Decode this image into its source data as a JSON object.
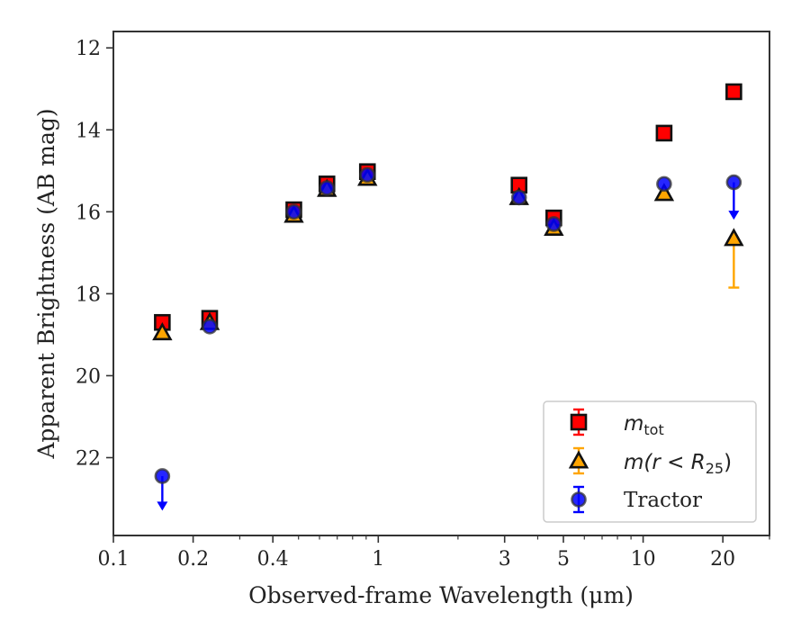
{
  "chart_data": {
    "type": "scatter",
    "xlabel": "Observed-frame Wavelength (μm)",
    "ylabel": "Apparent Brightness (AB mag)",
    "x_scale": "log",
    "y_inverted": true,
    "xlim": [
      0.1,
      30
    ],
    "ylim": [
      23.9,
      11.6
    ],
    "x_ticks": [
      0.1,
      0.2,
      0.4,
      1,
      3,
      5,
      10,
      20
    ],
    "x_tick_labels": [
      "0.1",
      "0.2",
      "0.4",
      "1",
      "3",
      "5",
      "10",
      "20"
    ],
    "y_ticks": [
      12,
      14,
      16,
      18,
      20,
      22
    ],
    "y_tick_labels": [
      "12",
      "14",
      "16",
      "18",
      "20",
      "22"
    ],
    "grid": false,
    "legend_position": "lower-right",
    "series": [
      {
        "name": "m_tot",
        "legend_main": "m",
        "legend_sub": "tot",
        "marker": "square",
        "color": "#ff0000",
        "points": [
          {
            "x": 0.153,
            "y": 18.7
          },
          {
            "x": 0.231,
            "y": 18.6
          },
          {
            "x": 0.48,
            "y": 15.95
          },
          {
            "x": 0.64,
            "y": 15.32
          },
          {
            "x": 0.91,
            "y": 15.02
          },
          {
            "x": 3.4,
            "y": 15.35
          },
          {
            "x": 4.6,
            "y": 16.15
          },
          {
            "x": 12.0,
            "y": 14.08
          },
          {
            "x": 22.0,
            "y": 13.07
          }
        ]
      },
      {
        "name": "m(r < R_25)",
        "legend_main": "m(r < R",
        "legend_sub": "25",
        "legend_close": ")",
        "marker": "triangle",
        "color": "#ffa500",
        "points": [
          {
            "x": 0.153,
            "y": 18.95
          },
          {
            "x": 0.231,
            "y": 18.7
          },
          {
            "x": 0.48,
            "y": 16.08
          },
          {
            "x": 0.64,
            "y": 15.45
          },
          {
            "x": 0.91,
            "y": 15.18
          },
          {
            "x": 3.4,
            "y": 15.65
          },
          {
            "x": 4.6,
            "y": 16.4
          },
          {
            "x": 12.0,
            "y": 15.55
          },
          {
            "x": 22.0,
            "y": 16.65,
            "err_low": 17.85,
            "err_high": 16.65
          }
        ]
      },
      {
        "name": "Tractor",
        "marker": "circle",
        "color": "#0000ff",
        "points": [
          {
            "x": 0.153,
            "y": 22.45,
            "upper_limit_to": 23.25
          },
          {
            "x": 0.231,
            "y": 18.8
          },
          {
            "x": 0.48,
            "y": 16.0
          },
          {
            "x": 0.64,
            "y": 15.42
          },
          {
            "x": 0.91,
            "y": 15.1
          },
          {
            "x": 3.4,
            "y": 15.65
          },
          {
            "x": 4.6,
            "y": 16.3
          },
          {
            "x": 12.0,
            "y": 15.32
          },
          {
            "x": 22.0,
            "y": 15.28,
            "upper_limit_to": 16.15
          }
        ]
      }
    ]
  }
}
